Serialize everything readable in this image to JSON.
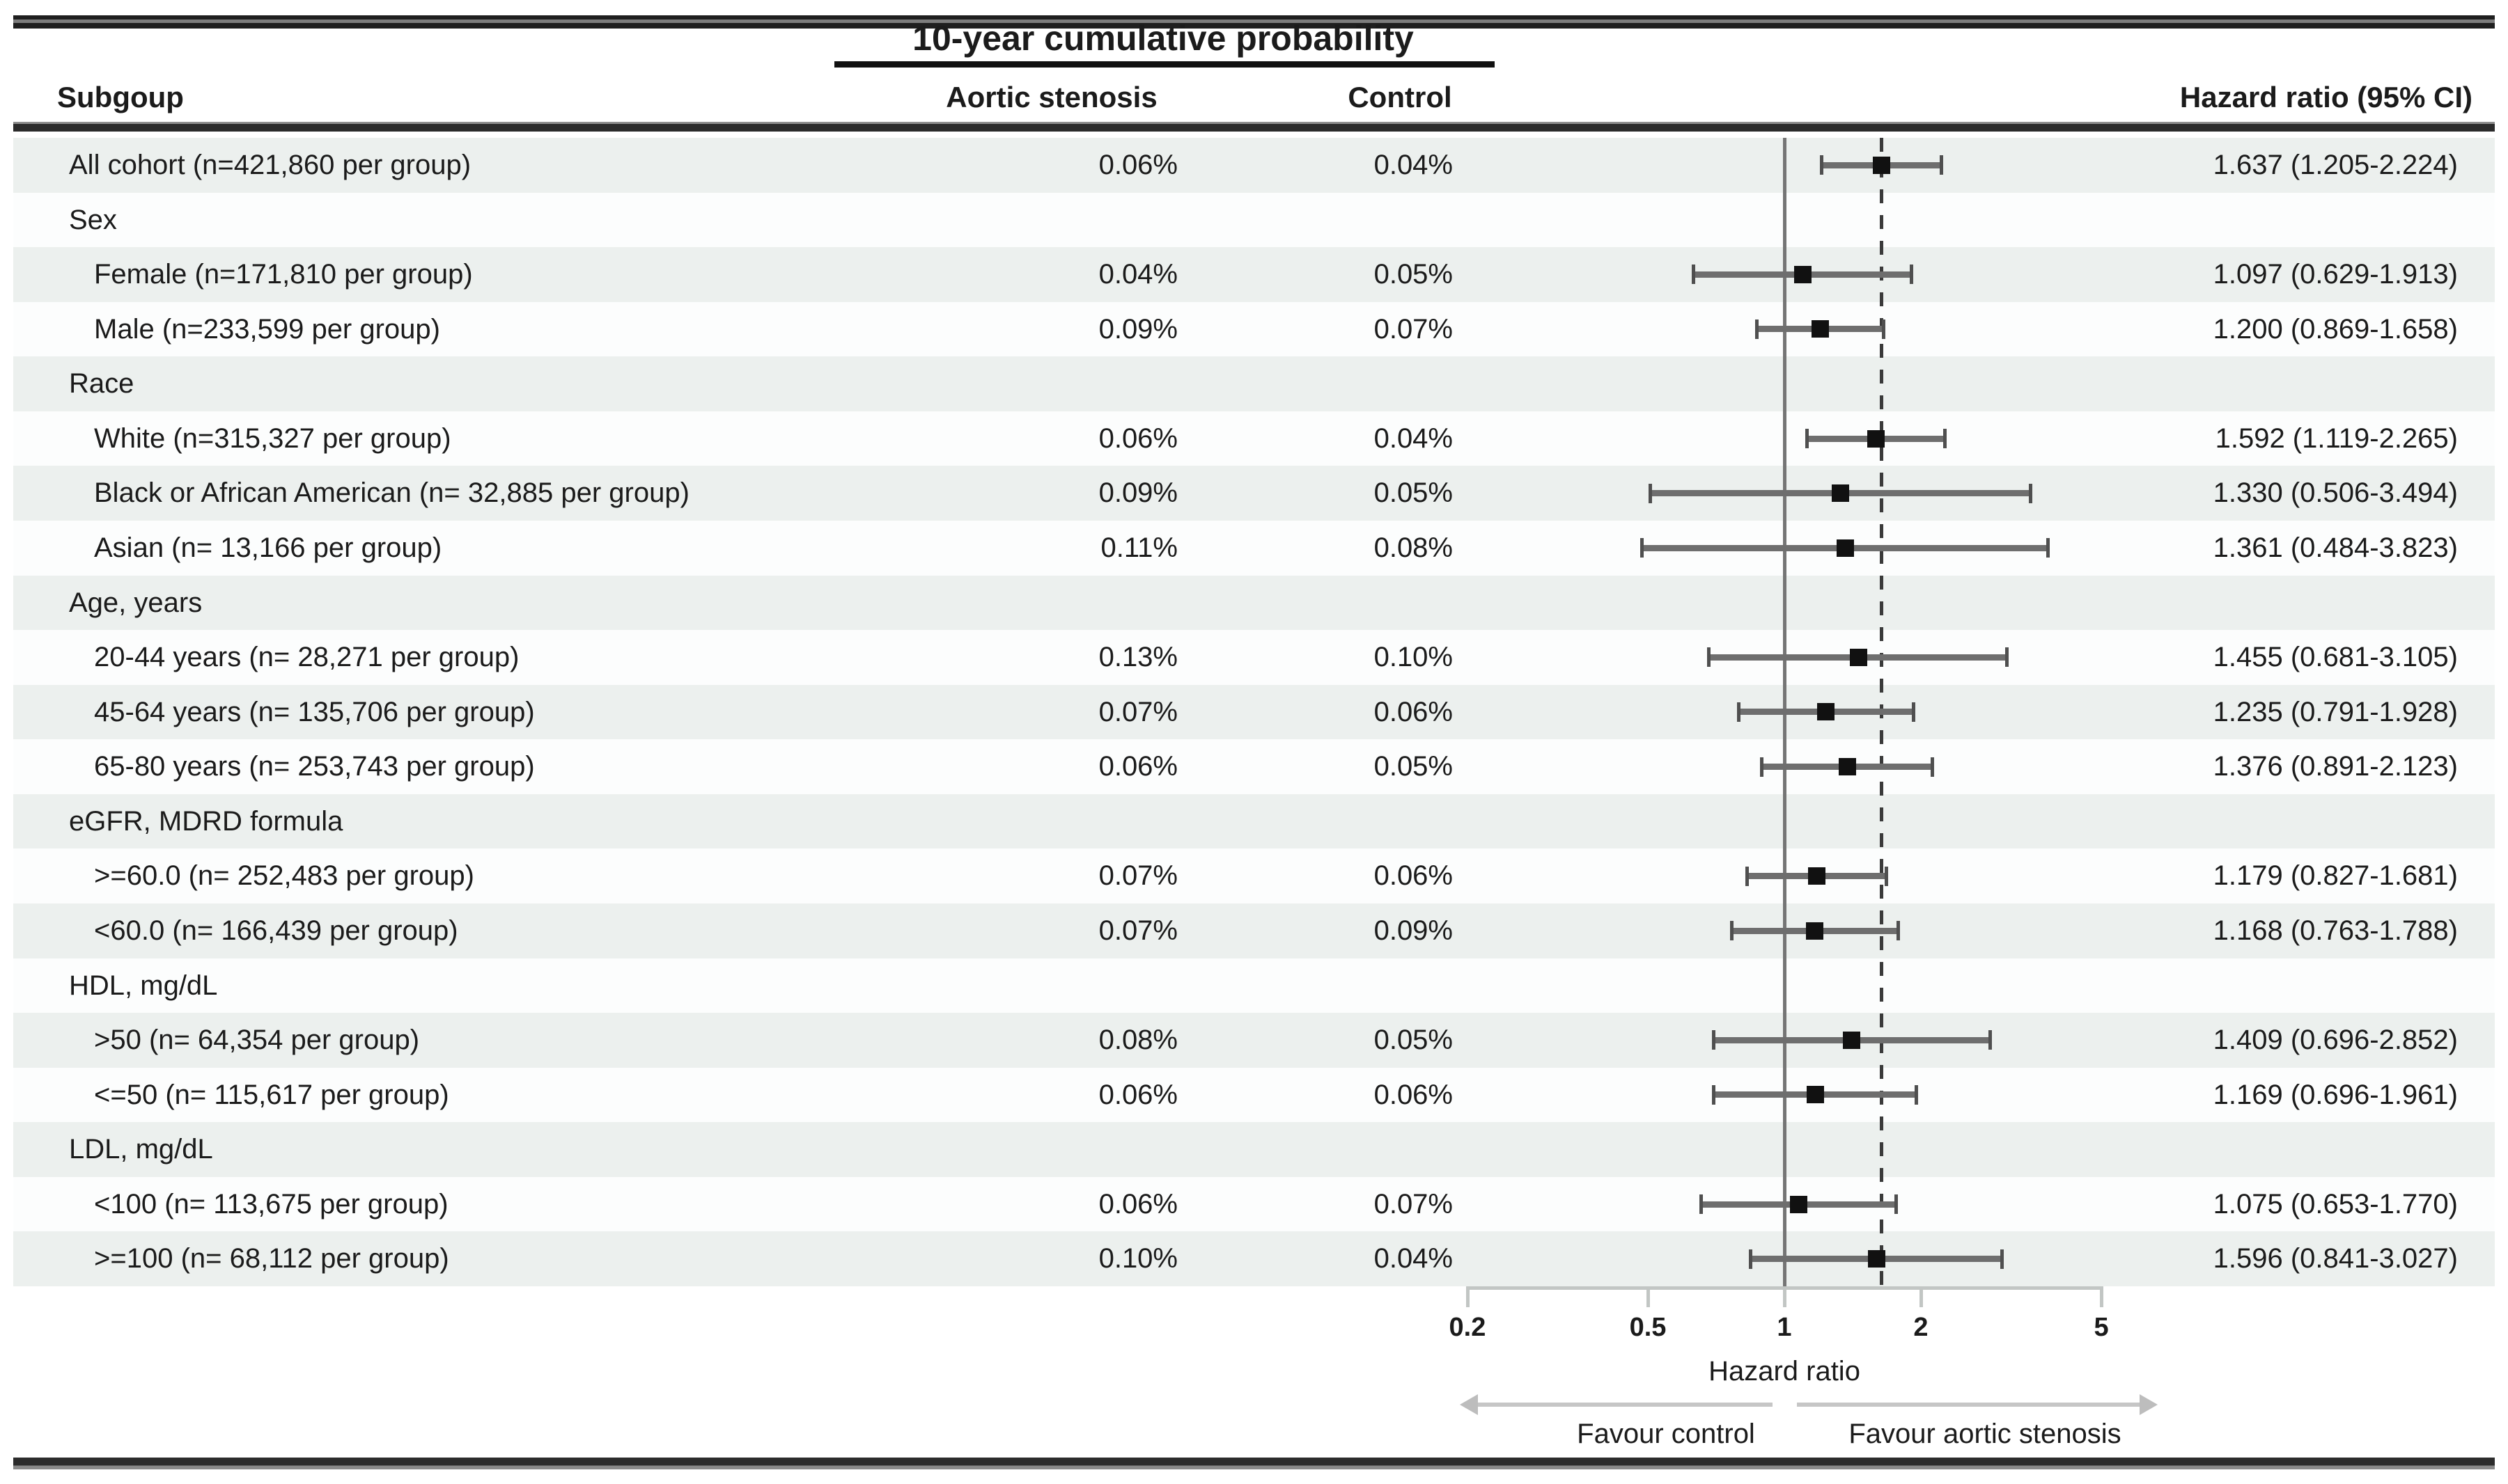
{
  "table": {
    "columns": {
      "subgroup": "Subgoup",
      "aortic": "Aortic stenosis",
      "control": "Control",
      "hazard": "Hazard ratio (95% CI)"
    }
  },
  "chart_data": {
    "type": "scatter",
    "variant": "forest-plot",
    "title": "10-year cumulative probability",
    "xlabel": "Hazard ratio",
    "x_scale": "log",
    "xlim": [
      0.2,
      5
    ],
    "x_ticks": [
      "0.2",
      "0.5",
      "1",
      "2",
      "5"
    ],
    "ref_line_solid": 1,
    "ref_line_dashed": 1.637,
    "arrow_left_label": "Favour control",
    "arrow_right_label": "Favour aortic stenosis",
    "rows": [
      {
        "type": "data",
        "indent": false,
        "label": "All cohort (n=421,860 per group)",
        "aortic_stenosis": "0.06%",
        "control": "0.04%",
        "hr_text": "1.637 (1.205-2.224)",
        "hr": 1.637,
        "ci_low": 1.205,
        "ci_high": 2.224
      },
      {
        "type": "section",
        "label": "Sex"
      },
      {
        "type": "data",
        "indent": true,
        "label": "Female (n=171,810 per group)",
        "aortic_stenosis": "0.04%",
        "control": "0.05%",
        "hr_text": "1.097 (0.629-1.913)",
        "hr": 1.097,
        "ci_low": 0.629,
        "ci_high": 1.913
      },
      {
        "type": "data",
        "indent": true,
        "label": "Male (n=233,599 per group)",
        "aortic_stenosis": "0.09%",
        "control": "0.07%",
        "hr_text": "1.200 (0.869-1.658)",
        "hr": 1.2,
        "ci_low": 0.869,
        "ci_high": 1.658
      },
      {
        "type": "section",
        "label": "Race"
      },
      {
        "type": "data",
        "indent": true,
        "label": "White (n=315,327 per group)",
        "aortic_stenosis": "0.06%",
        "control": "0.04%",
        "hr_text": "1.592 (1.119-2.265)",
        "hr": 1.592,
        "ci_low": 1.119,
        "ci_high": 2.265
      },
      {
        "type": "data",
        "indent": true,
        "label": "Black or African American (n= 32,885 per group)",
        "aortic_stenosis": "0.09%",
        "control": "0.05%",
        "hr_text": "1.330 (0.506-3.494)",
        "hr": 1.33,
        "ci_low": 0.506,
        "ci_high": 3.494
      },
      {
        "type": "data",
        "indent": true,
        "label": "Asian (n= 13,166 per group)",
        "aortic_stenosis": "0.11%",
        "control": "0.08%",
        "hr_text": "1.361 (0.484-3.823)",
        "hr": 1.361,
        "ci_low": 0.484,
        "ci_high": 3.823
      },
      {
        "type": "section",
        "label": "Age, years"
      },
      {
        "type": "data",
        "indent": true,
        "label": "20-44 years (n= 28,271 per group)",
        "aortic_stenosis": "0.13%",
        "control": "0.10%",
        "hr_text": "1.455 (0.681-3.105)",
        "hr": 1.455,
        "ci_low": 0.681,
        "ci_high": 3.105
      },
      {
        "type": "data",
        "indent": true,
        "label": "45-64 years (n= 135,706 per group)",
        "aortic_stenosis": "0.07%",
        "control": "0.06%",
        "hr_text": "1.235 (0.791-1.928)",
        "hr": 1.235,
        "ci_low": 0.791,
        "ci_high": 1.928
      },
      {
        "type": "data",
        "indent": true,
        "label": "65-80 years (n= 253,743 per group)",
        "aortic_stenosis": "0.06%",
        "control": "0.05%",
        "hr_text": "1.376 (0.891-2.123)",
        "hr": 1.376,
        "ci_low": 0.891,
        "ci_high": 2.123
      },
      {
        "type": "section",
        "label": "eGFR, MDRD formula"
      },
      {
        "type": "data",
        "indent": true,
        "label": ">=60.0 (n= 252,483 per group)",
        "aortic_stenosis": "0.07%",
        "control": "0.06%",
        "hr_text": "1.179 (0.827-1.681)",
        "hr": 1.179,
        "ci_low": 0.827,
        "ci_high": 1.681
      },
      {
        "type": "data",
        "indent": true,
        "label": "<60.0 (n= 166,439 per group)",
        "aortic_stenosis": "0.07%",
        "control": "0.09%",
        "hr_text": "1.168 (0.763-1.788)",
        "hr": 1.168,
        "ci_low": 0.763,
        "ci_high": 1.788
      },
      {
        "type": "section",
        "label": "HDL, mg/dL"
      },
      {
        "type": "data",
        "indent": true,
        "label": ">50 (n= 64,354 per group)",
        "aortic_stenosis": "0.08%",
        "control": "0.05%",
        "hr_text": "1.409 (0.696-2.852)",
        "hr": 1.409,
        "ci_low": 0.696,
        "ci_high": 2.852
      },
      {
        "type": "data",
        "indent": true,
        "label": "<=50 (n= 115,617 per group)",
        "aortic_stenosis": "0.06%",
        "control": "0.06%",
        "hr_text": "1.169 (0.696-1.961)",
        "hr": 1.169,
        "ci_low": 0.696,
        "ci_high": 1.961
      },
      {
        "type": "section",
        "label": "LDL, mg/dL"
      },
      {
        "type": "data",
        "indent": true,
        "label": "<100 (n= 113,675 per group)",
        "aortic_stenosis": "0.06%",
        "control": "0.07%",
        "hr_text": "1.075 (0.653-1.770)",
        "hr": 1.075,
        "ci_low": 0.653,
        "ci_high": 1.77
      },
      {
        "type": "data",
        "indent": true,
        "label": ">=100 (n= 68,112 per group)",
        "aortic_stenosis": "0.10%",
        "control": "0.04%",
        "hr_text": "1.596 (0.841-3.027)",
        "hr": 1.596,
        "ci_low": 0.841,
        "ci_high": 3.027
      }
    ]
  },
  "colors": {
    "band_gray": "#ecf0ee",
    "band_white": "#fcfdfd",
    "text": "#1b1b1b",
    "ci_line": "#6e6e6e",
    "marker": "#111111",
    "ref_solid": "#757575",
    "ref_dashed": "#3a3a3a",
    "axis": "#c2c6c4",
    "arrow": "#c6c6c6",
    "border": "#262626"
  }
}
